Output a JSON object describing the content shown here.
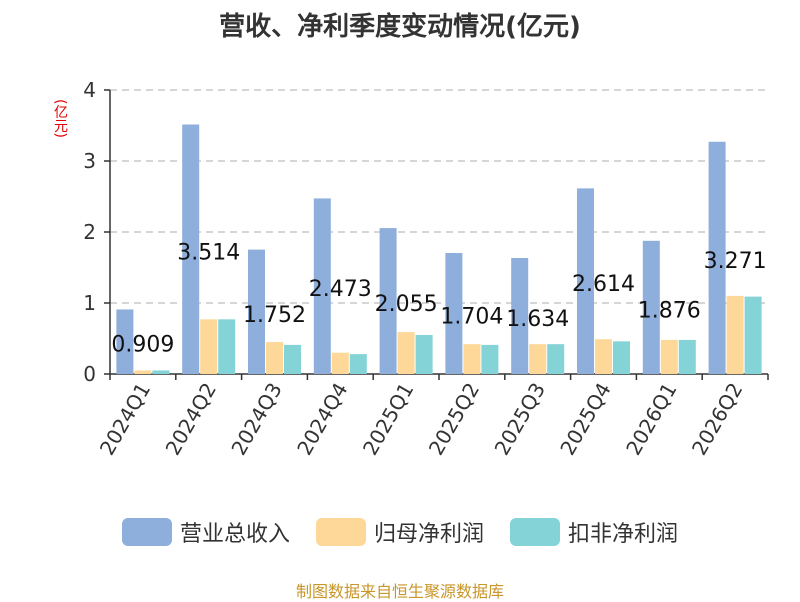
{
  "chart_data": {
    "type": "bar",
    "title": "营收、净利季度变动情况(亿元)",
    "ylabel": "(亿元)",
    "xlabel": "",
    "ylim": [
      0,
      4
    ],
    "yticks": [
      0,
      1,
      2,
      3,
      4
    ],
    "grid": true,
    "legend_position": "bottom",
    "categories": [
      "2024Q1",
      "2024Q2",
      "2024Q3",
      "2024Q4",
      "2025Q1",
      "2025Q2",
      "2025Q3",
      "2025Q4",
      "2026Q1",
      "2026Q2"
    ],
    "series": [
      {
        "name": "营业总收入",
        "color": "#8eaedc",
        "values": [
          0.909,
          3.514,
          1.752,
          2.473,
          2.055,
          1.704,
          1.634,
          2.614,
          1.876,
          3.271
        ]
      },
      {
        "name": "归母净利润",
        "color": "#fdd898",
        "values": [
          0.05,
          0.77,
          0.45,
          0.3,
          0.59,
          0.42,
          0.42,
          0.49,
          0.48,
          1.1
        ]
      },
      {
        "name": "扣非净利润",
        "color": "#84d3d7",
        "values": [
          0.05,
          0.77,
          0.41,
          0.28,
          0.55,
          0.41,
          0.42,
          0.46,
          0.48,
          1.09
        ]
      }
    ],
    "data_labels": [
      "0.909",
      "3.514",
      "1.752",
      "2.473",
      "2.055",
      "1.704",
      "1.634",
      "2.614",
      "1.876",
      "3.271"
    ]
  },
  "source": "制图数据来自恒生聚源数据库"
}
